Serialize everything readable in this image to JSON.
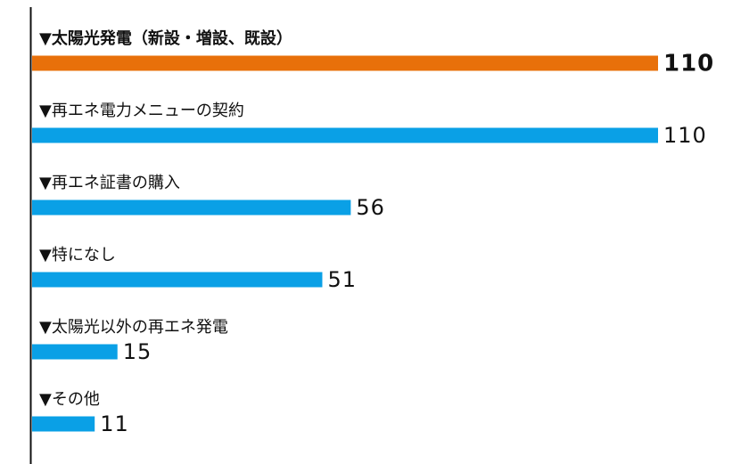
{
  "chart_data": {
    "type": "bar",
    "orientation": "horizontal",
    "categories": [
      "▼太陽光発電（新設・増設、既設）",
      "▼再エネ電力メニューの契約",
      "▼再エネ証書の購入",
      "▼特になし",
      "▼太陽光以外の再エネ発電",
      "▼その他"
    ],
    "values": [
      110,
      110,
      56,
      51,
      15,
      11
    ],
    "value_labels": [
      "110",
      "110",
      "56",
      "51",
      "15",
      "11"
    ],
    "xlim": [
      0,
      110
    ],
    "grid": false,
    "highlight_index": 0,
    "colors": {
      "highlight": "#e8700a",
      "bar": "#0aa0e6",
      "axis": "#111111"
    }
  }
}
